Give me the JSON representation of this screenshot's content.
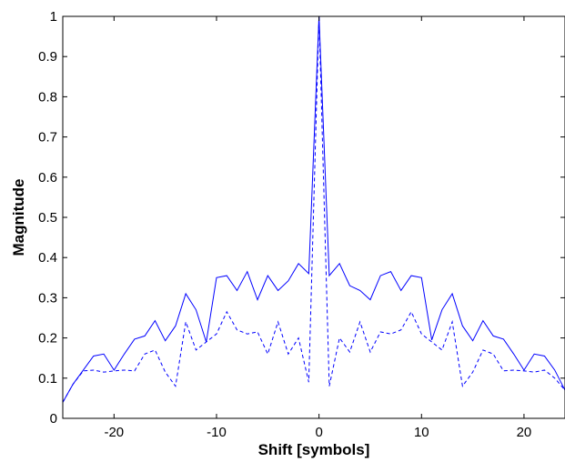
{
  "chart_data": {
    "type": "line",
    "title": "",
    "xlabel": "Shift [symbols]",
    "ylabel": "Magnitude",
    "xlim": [
      -25,
      24
    ],
    "ylim": [
      0,
      1
    ],
    "grid": false,
    "xticks": [
      -20,
      -10,
      0,
      10,
      20
    ],
    "xtick_labels": [
      "-20",
      "-10",
      "0",
      "10",
      "20"
    ],
    "yticks": [
      0,
      0.1,
      0.2,
      0.3,
      0.4,
      0.5,
      0.6,
      0.7,
      0.8,
      0.9,
      1
    ],
    "ytick_labels": [
      "0",
      "0.1",
      "0.2",
      "0.3",
      "0.4",
      "0.5",
      "0.6",
      "0.7",
      "0.8",
      "0.9",
      "1"
    ],
    "x": [
      -25,
      -24,
      -23,
      -22,
      -21,
      -20,
      -19,
      -18,
      -17,
      -16,
      -15,
      -14,
      -13,
      -12,
      -11,
      -10,
      -9,
      -8,
      -7,
      -6,
      -5,
      -4,
      -3,
      -2,
      -1,
      0,
      1,
      2,
      3,
      4,
      5,
      6,
      7,
      8,
      9,
      10,
      11,
      12,
      13,
      14,
      15,
      16,
      17,
      18,
      19,
      20,
      21,
      22,
      23,
      24
    ],
    "series": [
      {
        "style": "solid",
        "color": "#0000ff",
        "values": [
          0.04,
          0.085,
          0.12,
          0.155,
          0.16,
          0.12,
          0.16,
          0.197,
          0.205,
          0.243,
          0.193,
          0.23,
          0.31,
          0.27,
          0.19,
          0.35,
          0.355,
          0.318,
          0.365,
          0.295,
          0.355,
          0.318,
          0.342,
          0.385,
          0.36,
          1.0,
          0.355,
          0.385,
          0.33,
          0.318,
          0.295,
          0.355,
          0.365,
          0.318,
          0.355,
          0.35,
          0.195,
          0.27,
          0.31,
          0.23,
          0.193,
          0.243,
          0.205,
          0.197,
          0.16,
          0.12,
          0.16,
          0.155,
          0.12,
          0.07
        ]
      },
      {
        "style": "dashed",
        "color": "#0000ff",
        "values": [
          0.04,
          0.085,
          0.118,
          0.12,
          0.115,
          0.118,
          0.12,
          0.118,
          0.16,
          0.17,
          0.115,
          0.08,
          0.24,
          0.17,
          0.19,
          0.21,
          0.265,
          0.22,
          0.21,
          0.215,
          0.16,
          0.24,
          0.16,
          0.2,
          0.09,
          1.0,
          0.08,
          0.2,
          0.165,
          0.24,
          0.165,
          0.215,
          0.21,
          0.22,
          0.265,
          0.21,
          0.19,
          0.17,
          0.24,
          0.08,
          0.115,
          0.17,
          0.16,
          0.118,
          0.12,
          0.118,
          0.115,
          0.12,
          0.1,
          0.07
        ]
      }
    ]
  }
}
